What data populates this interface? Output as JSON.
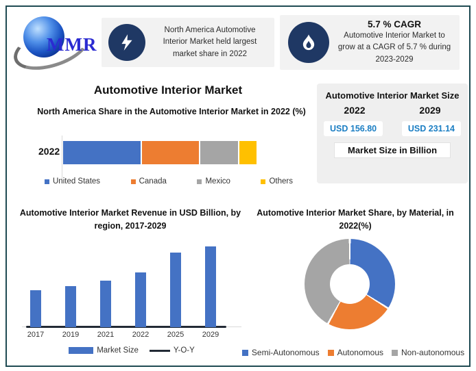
{
  "logo": {
    "text": "MMR"
  },
  "header": {
    "highlight_box": {
      "text": "North America Automotive Interior Market held largest market share in 2022"
    },
    "cagr_box": {
      "title": "5.7 % CAGR",
      "text": "Automotive Interior Market to grow at a CAGR of 5.7 % during 2023-2029"
    }
  },
  "main_title": "Automotive Interior Market",
  "market_size_panel": {
    "title": "Automotive Interior Market Size",
    "year_left": "2022",
    "year_right": "2029",
    "value_left": "USD 156.80",
    "value_right": "USD 231.14",
    "footer": "Market Size in Billion",
    "value_color": "#1b7ec3"
  },
  "colors": {
    "frame_border": "#1f4a52",
    "icon_circle": "#1f3864",
    "box_background": "#f2f2f2",
    "panel_background": "#efefef",
    "series_blue": "#4472c4",
    "series_orange": "#ed7d31",
    "series_gray": "#a5a5a5",
    "series_yellow": "#ffc000",
    "yoy_line": "#222a35"
  },
  "chart_data": [
    {
      "type": "bar",
      "variant": "stacked-horizontal",
      "title": "North America Share in the Automotive Interior Market in 2022 (%)",
      "categories": [
        "2022"
      ],
      "series": [
        {
          "name": "United States",
          "color": "#4472c4",
          "values": [
            41
          ]
        },
        {
          "name": "Canada",
          "color": "#ed7d31",
          "values": [
            30
          ]
        },
        {
          "name": "Mexico",
          "color": "#a5a5a5",
          "values": [
            20
          ]
        },
        {
          "name": "Others",
          "color": "#ffc000",
          "values": [
            9
          ]
        }
      ],
      "legend_position": "bottom"
    },
    {
      "type": "bar",
      "title": "Automotive Interior Market Revenue in USD Billion, by region, 2017-2029",
      "categories": [
        "2017",
        "2019",
        "2021",
        "2022",
        "2025",
        "2029"
      ],
      "series": [
        {
          "name": "Market Size",
          "type": "bar",
          "color": "#4472c4",
          "values": [
            106,
            118,
            133,
            156.8,
            213,
            231.14
          ]
        },
        {
          "name": "Y-O-Y",
          "type": "line",
          "color": "#222a35",
          "values": [
            0,
            0,
            0,
            0,
            0,
            0
          ]
        }
      ],
      "ylim": [
        0,
        240
      ],
      "legend_position": "bottom"
    },
    {
      "type": "pie",
      "variant": "donut",
      "title": "Automotive Interior Market Share, by Material, in 2022(%)",
      "slices": [
        {
          "name": "Semi-Autonomous",
          "color": "#4472c4",
          "value": 34
        },
        {
          "name": "Autonomous",
          "color": "#ed7d31",
          "value": 24
        },
        {
          "name": "Non-autonomous",
          "color": "#a5a5a5",
          "value": 42
        }
      ],
      "legend_position": "bottom"
    }
  ]
}
